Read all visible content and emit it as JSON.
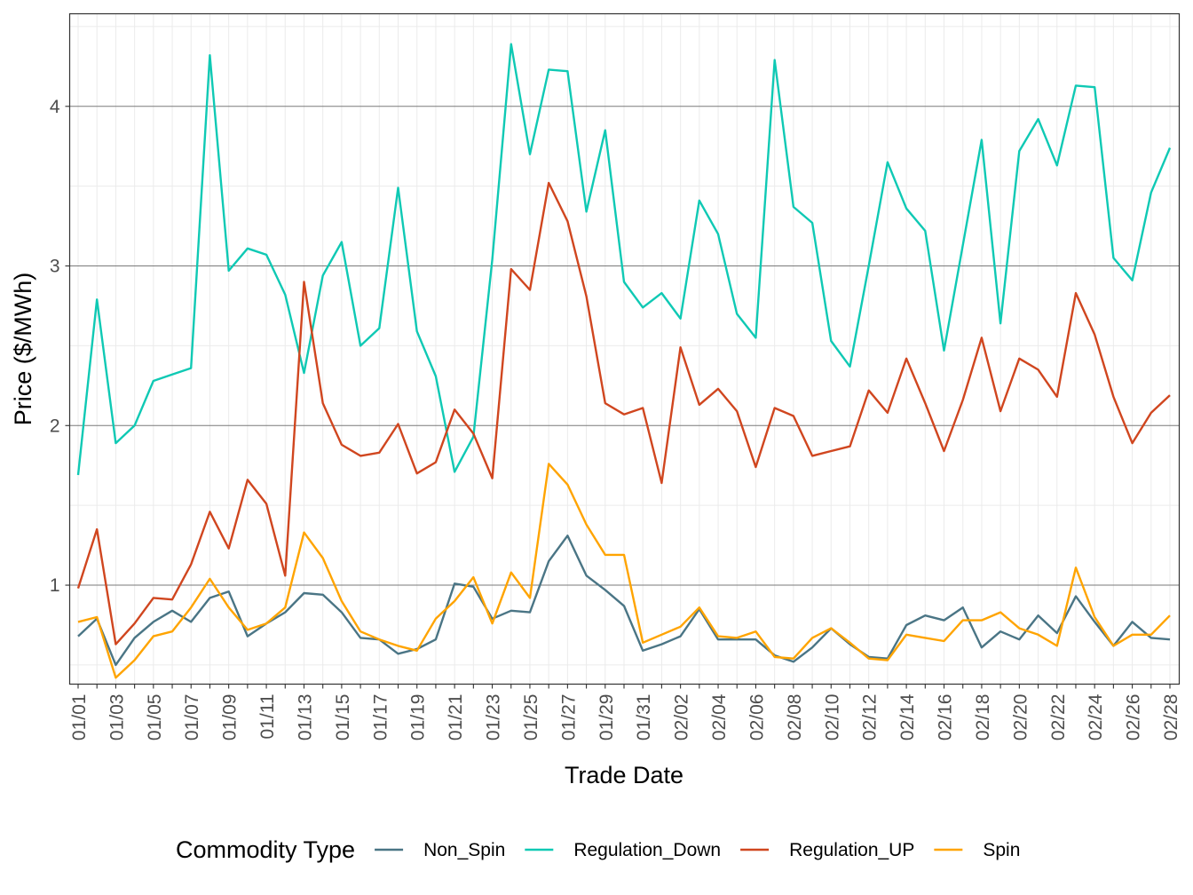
{
  "chart_data": {
    "type": "line",
    "title": "",
    "xlabel": "Trade Date",
    "ylabel": "Price ($/MWh)",
    "ylim": [
      0.38,
      4.58
    ],
    "y_ticks": [
      1,
      2,
      3,
      4
    ],
    "y_tick_labels": [
      "1",
      "2",
      "3",
      "4"
    ],
    "grid": true,
    "legend_position": "bottom",
    "legend_title": "Commodity Type",
    "x": [
      "01/01",
      "01/02",
      "01/03",
      "01/04",
      "01/05",
      "01/06",
      "01/07",
      "01/08",
      "01/09",
      "01/10",
      "01/11",
      "01/12",
      "01/13",
      "01/14",
      "01/15",
      "01/16",
      "01/17",
      "01/18",
      "01/19",
      "01/20",
      "01/21",
      "01/22",
      "01/23",
      "01/24",
      "01/25",
      "01/26",
      "01/27",
      "01/28",
      "01/29",
      "01/30",
      "01/31",
      "02/01",
      "02/02",
      "02/03",
      "02/04",
      "02/05",
      "02/06",
      "02/07",
      "02/08",
      "02/09",
      "02/10",
      "02/11",
      "02/12",
      "02/13",
      "02/14",
      "02/15",
      "02/16",
      "02/17",
      "02/18",
      "02/19",
      "02/20",
      "02/21",
      "02/22",
      "02/23",
      "02/24",
      "02/25",
      "02/26",
      "02/27",
      "02/28"
    ],
    "x_tick_labels": [
      "01/01",
      "01/03",
      "01/05",
      "01/07",
      "01/09",
      "01/11",
      "01/13",
      "01/15",
      "01/17",
      "01/19",
      "01/21",
      "01/23",
      "01/25",
      "01/27",
      "01/29",
      "01/31",
      "02/02",
      "02/04",
      "02/06",
      "02/08",
      "02/10",
      "02/12",
      "02/14",
      "02/16",
      "02/18",
      "02/20",
      "02/22",
      "02/24",
      "02/26",
      "02/28"
    ],
    "series": [
      {
        "name": "Non_Spin",
        "color": "#4a7585",
        "values": [
          0.68,
          0.79,
          0.5,
          0.67,
          0.77,
          0.84,
          0.77,
          0.92,
          0.96,
          0.68,
          0.76,
          0.83,
          0.95,
          0.94,
          0.83,
          0.67,
          0.66,
          0.57,
          0.6,
          0.66,
          1.01,
          0.99,
          0.79,
          0.84,
          0.83,
          1.15,
          1.31,
          1.06,
          0.97,
          0.87,
          0.59,
          0.63,
          0.68,
          0.85,
          0.66,
          0.66,
          0.66,
          0.56,
          0.52,
          0.61,
          0.73,
          0.63,
          0.55,
          0.54,
          0.75,
          0.81,
          0.78,
          0.86,
          0.61,
          0.71,
          0.66,
          0.81,
          0.7,
          0.93,
          0.77,
          0.62,
          0.77,
          0.67,
          0.66
        ]
      },
      {
        "name": "Regulation_Down",
        "color": "#0fc9b4",
        "values": [
          1.69,
          2.79,
          1.89,
          2.0,
          2.28,
          2.32,
          2.36,
          4.32,
          2.97,
          3.11,
          3.07,
          2.82,
          2.33,
          2.94,
          3.15,
          2.5,
          2.61,
          3.49,
          2.59,
          2.31,
          1.71,
          1.93,
          3.04,
          4.39,
          3.7,
          4.23,
          4.22,
          3.34,
          3.85,
          2.9,
          2.74,
          2.83,
          2.67,
          3.41,
          3.2,
          2.7,
          2.55,
          4.29,
          3.37,
          3.27,
          2.53,
          2.37,
          3.0,
          3.65,
          3.36,
          3.22,
          2.47,
          3.13,
          3.79,
          2.64,
          3.72,
          3.92,
          3.63,
          4.13,
          4.12,
          3.05,
          2.91,
          3.46,
          3.74
        ]
      },
      {
        "name": "Regulation_UP",
        "color": "#d0461f",
        "values": [
          0.98,
          1.35,
          0.63,
          0.76,
          0.92,
          0.91,
          1.13,
          1.46,
          1.23,
          1.66,
          1.51,
          1.06,
          2.9,
          2.14,
          1.88,
          1.81,
          1.83,
          2.01,
          1.7,
          1.77,
          2.1,
          1.95,
          1.67,
          2.98,
          2.85,
          3.52,
          3.28,
          2.81,
          2.14,
          2.07,
          2.11,
          1.64,
          2.49,
          2.13,
          2.23,
          2.09,
          1.74,
          2.11,
          2.06,
          1.81,
          1.84,
          1.87,
          2.22,
          2.08,
          2.42,
          2.14,
          1.84,
          2.16,
          2.55,
          2.09,
          2.42,
          2.35,
          2.18,
          2.83,
          2.57,
          2.18,
          1.89,
          2.08,
          2.19
        ]
      },
      {
        "name": "Spin",
        "color": "#ffa400",
        "values": [
          0.77,
          0.8,
          0.42,
          0.53,
          0.68,
          0.71,
          0.86,
          1.04,
          0.86,
          0.72,
          0.76,
          0.86,
          1.33,
          1.17,
          0.9,
          0.71,
          0.66,
          0.62,
          0.59,
          0.79,
          0.9,
          1.05,
          0.76,
          1.08,
          0.92,
          1.76,
          1.63,
          1.38,
          1.19,
          1.19,
          0.64,
          0.69,
          0.74,
          0.86,
          0.68,
          0.67,
          0.71,
          0.55,
          0.54,
          0.67,
          0.73,
          0.64,
          0.54,
          0.53,
          0.69,
          0.67,
          0.65,
          0.78,
          0.78,
          0.83,
          0.73,
          0.69,
          0.62,
          1.11,
          0.8,
          0.62,
          0.69,
          0.69,
          0.81
        ]
      }
    ]
  }
}
